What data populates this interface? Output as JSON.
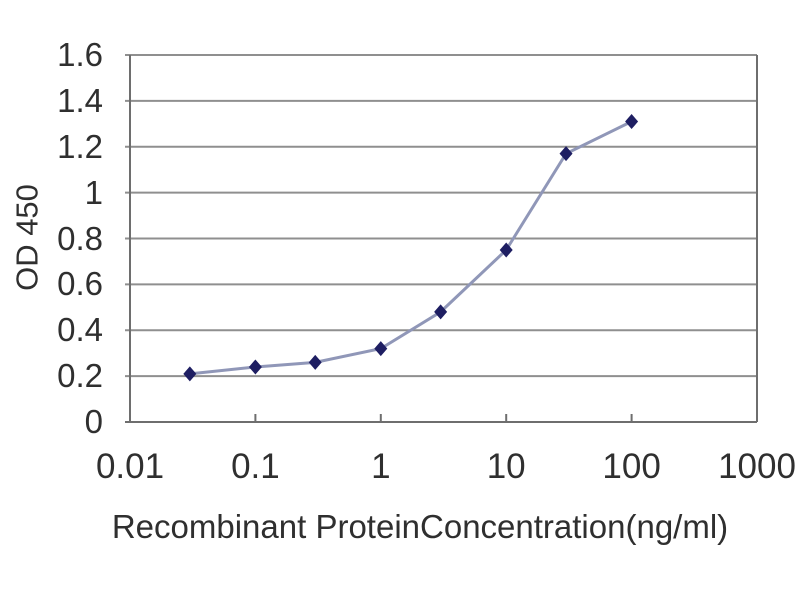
{
  "chart_data": {
    "type": "line",
    "title": "",
    "xlabel": "Recombinant ProteinConcentration(ng/ml)",
    "ylabel": "OD 450",
    "x_scale": "log",
    "xlim": [
      0.01,
      1000
    ],
    "ylim": [
      0,
      1.6
    ],
    "x_ticks": [
      0.01,
      0.1,
      1,
      10,
      100,
      1000
    ],
    "x_tick_labels": [
      "0.01",
      "0.1",
      "1",
      "10",
      "100",
      "1000"
    ],
    "y_ticks": [
      0,
      0.2,
      0.4,
      0.6,
      0.8,
      1,
      1.2,
      1.4,
      1.6
    ],
    "y_tick_labels": [
      "0",
      "0.2",
      "0.4",
      "0.6",
      "0.8",
      "1",
      "1.2",
      "1.4",
      "1.6"
    ],
    "grid": "horizontal",
    "legend": "none",
    "series": [
      {
        "marker": "diamond",
        "x": [
          0.03,
          0.1,
          0.3,
          1,
          3,
          10,
          30,
          100
        ],
        "y": [
          0.21,
          0.24,
          0.26,
          0.32,
          0.48,
          0.75,
          1.17,
          1.31
        ]
      }
    ],
    "colors": {
      "series_line": "#9097b8",
      "series_marker": "#1e1e62",
      "gridline": "#8f8f8f",
      "axis_frame": "#6e6e6e",
      "tick_text": "#2f2f2f",
      "background": "#ffffff"
    }
  }
}
